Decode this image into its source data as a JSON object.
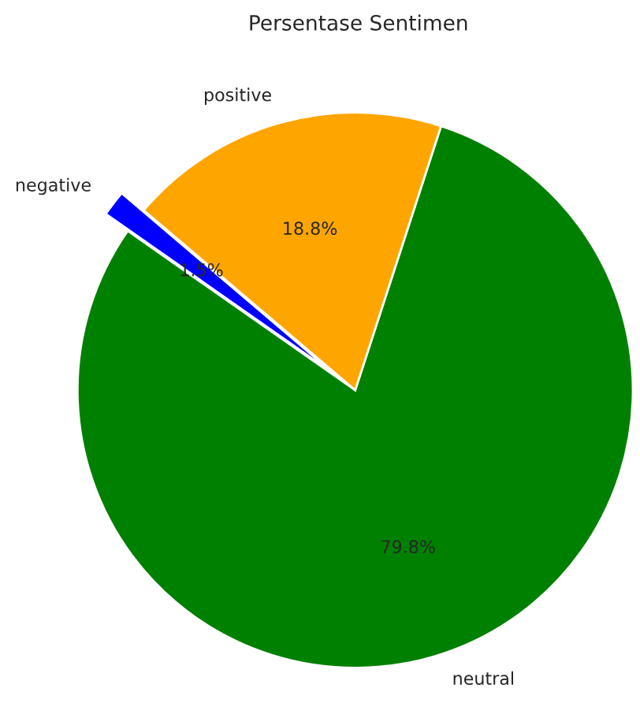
{
  "chart_data": {
    "type": "pie",
    "title": "Persentase Sentimen",
    "categories": [
      "neutral",
      "positive",
      "negative"
    ],
    "values": [
      79.8,
      18.8,
      1.5
    ],
    "colors": [
      "#008000",
      "#ffa500",
      "#0000ff"
    ],
    "value_labels": [
      "79.8%",
      "18.8%",
      "1.5%"
    ]
  }
}
